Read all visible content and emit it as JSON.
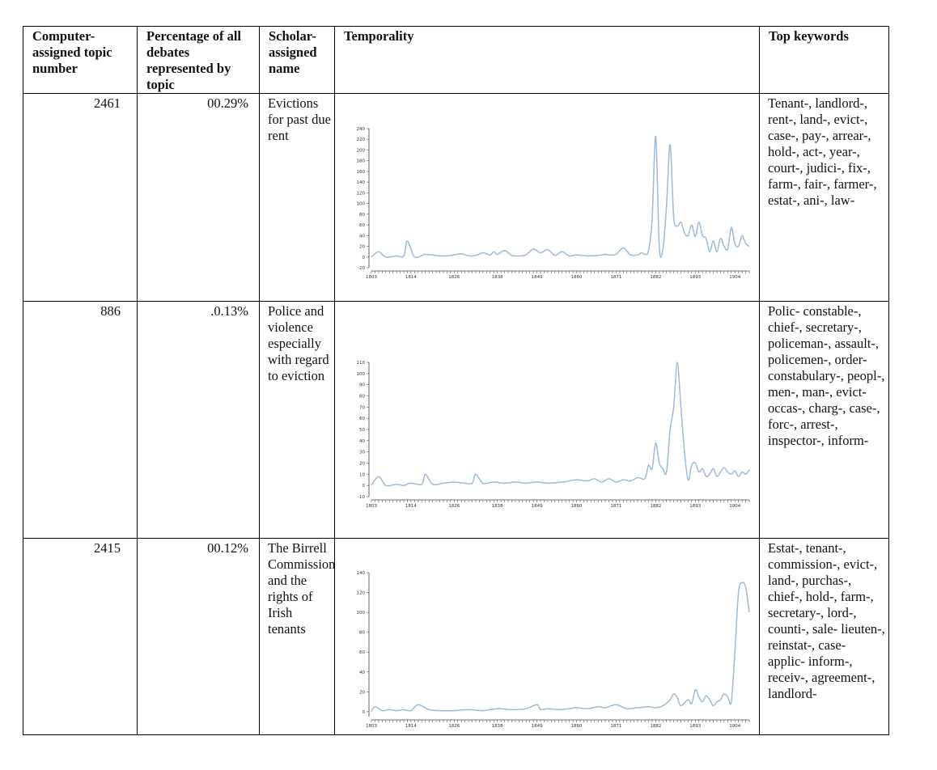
{
  "table": {
    "headers": [
      "Computer-assigned topic number",
      "Percentage of all debates represented by topic",
      "Scholar-assigned name",
      "Temporality",
      "Top keywords"
    ],
    "rows": [
      {
        "topic_number": "2461",
        "percentage": "00.29%",
        "name": "Evictions for past due rent",
        "keywords": "Tenant-, landlord-, rent-, land-, evict-, case-, pay-, arrear-, hold-, act-, year-, court-, judici-, fix-, farm-, fair-, farmer-, estat-, ani-, law-"
      },
      {
        "topic_number": "886",
        "percentage": ".0.13%",
        "name": "Police and violence especially with regard to eviction",
        "keywords": "Polic- constable-, chief-, secretary-, policeman-, assault-, policemen-, order- constabulary-, peopl-, men-, man-, evict- occas-, charg-, case-, forc-, arrest-, inspector-, inform-"
      },
      {
        "topic_number": "2415",
        "percentage": "00.12%",
        "name": "The Birrell Commission and the rights of Irish tenants",
        "keywords": "Estat-, tenant-, commission-, evict-, land-, purchas-, chief-, hold-, farm-, secretary-, lord-, counti-, sale- lieuten-, reinstat-, case- applic- inform-, receiv-, agreement-, landlord-"
      }
    ]
  },
  "chart_data": [
    {
      "type": "line",
      "x_tick_labels": [
        "1803",
        "1814",
        "1826",
        "1838",
        "1849",
        "1860",
        "1871",
        "1882",
        "1893",
        "1904"
      ],
      "xlim": [
        1803,
        1908
      ],
      "ylim": [
        -20,
        240
      ],
      "yticks": [
        -20,
        0,
        20,
        40,
        60,
        80,
        100,
        120,
        140,
        160,
        180,
        200,
        220,
        240
      ],
      "series": [
        {
          "x": [
            1803,
            1805,
            1807,
            1810,
            1812,
            1813,
            1815,
            1818,
            1822,
            1825,
            1828,
            1830,
            1832,
            1834,
            1836,
            1837,
            1838,
            1840,
            1842,
            1844,
            1846,
            1848,
            1850,
            1852,
            1854,
            1856,
            1858,
            1860,
            1863,
            1866,
            1868,
            1869,
            1871,
            1873,
            1875,
            1877,
            1878,
            1879,
            1880,
            1881,
            1882,
            1883,
            1884,
            1885,
            1886,
            1887,
            1888,
            1889,
            1890,
            1891,
            1892,
            1893,
            1894,
            1895,
            1896,
            1897,
            1898,
            1899,
            1900,
            1901,
            1902,
            1903,
            1904,
            1905,
            1906,
            1907,
            1908
          ],
          "y": [
            0,
            10,
            0,
            2,
            2,
            30,
            0,
            5,
            2,
            3,
            6,
            2,
            3,
            8,
            4,
            10,
            5,
            12,
            3,
            2,
            4,
            15,
            8,
            14,
            3,
            10,
            2,
            4,
            2,
            3,
            5,
            4,
            5,
            17,
            4,
            4,
            8,
            5,
            12,
            70,
            225,
            20,
            15,
            95,
            210,
            75,
            58,
            65,
            45,
            40,
            60,
            38,
            65,
            40,
            35,
            10,
            30,
            10,
            35,
            20,
            15,
            55,
            25,
            20,
            40,
            25,
            20
          ]
        }
      ]
    },
    {
      "type": "line",
      "x_tick_labels": [
        "1803",
        "1814",
        "1826",
        "1838",
        "1849",
        "1860",
        "1871",
        "1882",
        "1893",
        "1904"
      ],
      "xlim": [
        1803,
        1908
      ],
      "ylim": [
        -10,
        110
      ],
      "yticks": [
        -10,
        0,
        10,
        20,
        30,
        40,
        50,
        60,
        70,
        80,
        90,
        100,
        110
      ],
      "series": [
        {
          "x": [
            1803,
            1805,
            1807,
            1810,
            1812,
            1814,
            1817,
            1818,
            1820,
            1823,
            1826,
            1829,
            1831,
            1832,
            1834,
            1837,
            1840,
            1843,
            1846,
            1849,
            1852,
            1856,
            1860,
            1863,
            1865,
            1867,
            1869,
            1871,
            1873,
            1875,
            1877,
            1879,
            1880,
            1881,
            1882,
            1883,
            1884,
            1885,
            1886,
            1887,
            1888,
            1889,
            1890,
            1891,
            1892,
            1893,
            1894,
            1895,
            1896,
            1897,
            1898,
            1899,
            1900,
            1901,
            1902,
            1903,
            1904,
            1905,
            1906,
            1907,
            1908
          ],
          "y": [
            0,
            8,
            0,
            1,
            0,
            2,
            1,
            10,
            1,
            2,
            3,
            2,
            2,
            10,
            2,
            3,
            2,
            3,
            2,
            3,
            2,
            3,
            5,
            4,
            6,
            3,
            6,
            3,
            5,
            4,
            7,
            6,
            18,
            15,
            38,
            20,
            15,
            12,
            50,
            70,
            110,
            70,
            30,
            5,
            18,
            20,
            12,
            15,
            8,
            10,
            15,
            8,
            12,
            16,
            12,
            10,
            13,
            8,
            12,
            10,
            14
          ]
        }
      ]
    },
    {
      "type": "line",
      "x_tick_labels": [
        "1803",
        "1814",
        "1826",
        "1838",
        "1849",
        "1860",
        "1871",
        "1882",
        "1893",
        "1904"
      ],
      "xlim": [
        1803,
        1908
      ],
      "ylim": [
        -5,
        140
      ],
      "yticks": [
        0,
        20,
        40,
        60,
        80,
        100,
        120,
        140
      ],
      "series": [
        {
          "x": [
            1803,
            1804,
            1806,
            1808,
            1810,
            1812,
            1814,
            1816,
            1819,
            1822,
            1826,
            1830,
            1834,
            1838,
            1842,
            1846,
            1849,
            1850,
            1852,
            1855,
            1858,
            1860,
            1863,
            1866,
            1868,
            1871,
            1874,
            1877,
            1880,
            1882,
            1884,
            1886,
            1887,
            1888,
            1889,
            1891,
            1892,
            1893,
            1894,
            1895,
            1896,
            1897,
            1898,
            1899,
            1900,
            1901,
            1902,
            1903,
            1904,
            1905,
            1906,
            1907,
            1908
          ],
          "y": [
            0,
            5,
            1,
            2,
            1,
            2,
            1,
            7,
            2,
            1,
            1,
            2,
            1,
            3,
            2,
            3,
            7,
            2,
            3,
            2,
            3,
            4,
            3,
            5,
            4,
            7,
            3,
            4,
            5,
            4,
            6,
            12,
            18,
            14,
            6,
            12,
            8,
            22,
            15,
            10,
            16,
            12,
            6,
            10,
            12,
            18,
            15,
            10,
            60,
            120,
            130,
            125,
            100
          ]
        }
      ]
    }
  ]
}
